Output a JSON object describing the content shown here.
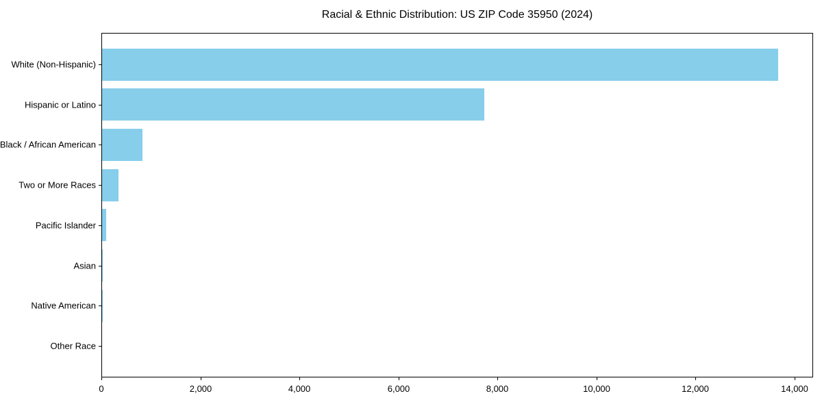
{
  "figure": {
    "background_color": "#ffffff",
    "axis_color": "#000000",
    "text_color": "#000000"
  },
  "chart_data": {
    "type": "bar",
    "orientation": "horizontal",
    "title": "Racial & Ethnic Distribution: US ZIP Code 35950 (2024)",
    "categories": [
      "White (Non-Hispanic)",
      "Hispanic or Latino",
      "Black / African American",
      "Two or More Races",
      "Pacific Islander",
      "Asian",
      "Native American",
      "Other Race"
    ],
    "values": [
      13650,
      7715,
      815,
      330,
      80,
      15,
      10,
      5
    ],
    "bar_color": "#87CEEB",
    "xlabel": "",
    "ylabel": "",
    "xlim": [
      0,
      14345
    ],
    "xticks": [
      0,
      2000,
      4000,
      6000,
      8000,
      10000,
      12000,
      14000
    ],
    "xtick_labels": [
      "0",
      "2,000",
      "4,000",
      "6,000",
      "8,000",
      "10,000",
      "12,000",
      "14,000"
    ],
    "grid": false,
    "legend": null
  }
}
